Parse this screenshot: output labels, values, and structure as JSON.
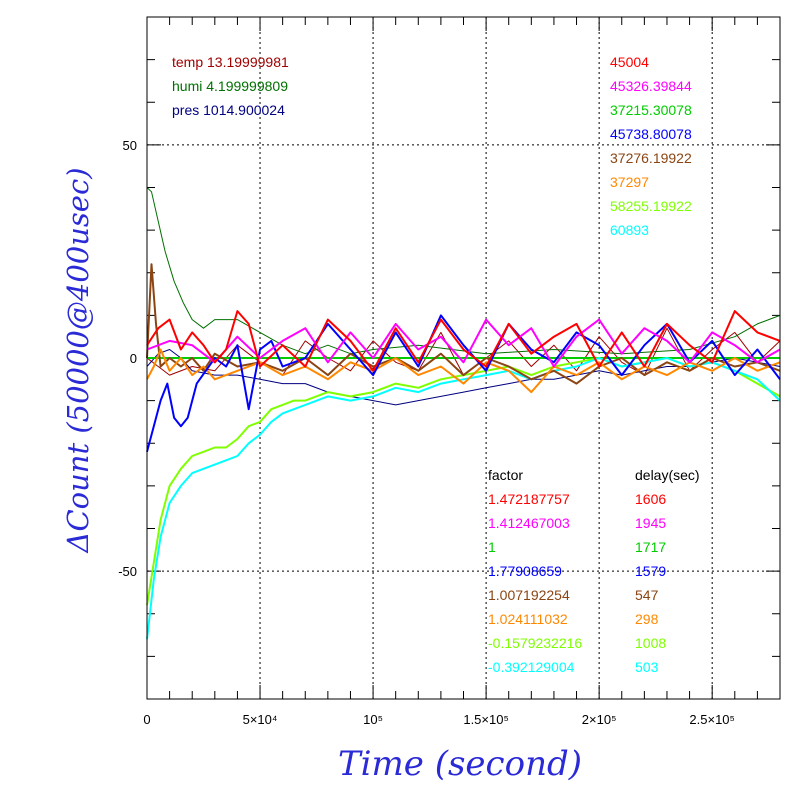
{
  "chart_data": {
    "type": "line",
    "xlabel": "Time (second)",
    "ylabel": "ΔCount (50000@400usec)",
    "xlim": [
      0,
      280000
    ],
    "ylim": [
      -80,
      80
    ],
    "grid": true,
    "x_ticks": [
      {
        "value": 0,
        "label": "0"
      },
      {
        "value": 50000,
        "label": "5×10⁴"
      },
      {
        "value": 100000,
        "label": "10⁵"
      },
      {
        "value": 150000,
        "label": "1.5×10⁵"
      },
      {
        "value": 200000,
        "label": "2×10⁵"
      },
      {
        "value": 250000,
        "label": "2.5×10⁵"
      }
    ],
    "y_ticks": [
      {
        "value": 50,
        "label": "50"
      },
      {
        "value": 0,
        "label": "0"
      },
      {
        "value": -50,
        "label": "-50"
      }
    ],
    "environment": [
      {
        "label": "temp 13.19999981",
        "color": "#a00000"
      },
      {
        "label": "humi 4.199999809",
        "color": "#007000"
      },
      {
        "label": "pres 1014.900024",
        "color": "#000080"
      }
    ],
    "factor_header": "factor",
    "delay_header": "delay(sec)",
    "series": [
      {
        "base": "45004",
        "factor": "1.472187757",
        "delay": "1606",
        "color": "#ff0000",
        "x": [
          0,
          5000,
          10000,
          15000,
          20000,
          25000,
          30000,
          35000,
          40000,
          45000,
          50000,
          60000,
          70000,
          80000,
          90000,
          100000,
          110000,
          120000,
          130000,
          140000,
          150000,
          160000,
          170000,
          180000,
          190000,
          200000,
          210000,
          220000,
          230000,
          240000,
          250000,
          260000,
          270000,
          280000
        ],
        "y": [
          3,
          7,
          9,
          2,
          6,
          3,
          -1,
          2,
          11,
          8,
          -2,
          3,
          -2,
          9,
          4,
          -3,
          7,
          -1,
          9,
          2,
          -2,
          8,
          1,
          5,
          8,
          -2,
          6,
          -2,
          8,
          3,
          -1,
          11,
          6,
          4
        ]
      },
      {
        "base": "45326.39844",
        "factor": "1.412467003",
        "delay": "1945",
        "color": "#ff00ff",
        "x": [
          0,
          10000,
          20000,
          30000,
          40000,
          50000,
          60000,
          70000,
          80000,
          90000,
          100000,
          110000,
          120000,
          130000,
          140000,
          150000,
          160000,
          170000,
          180000,
          190000,
          200000,
          210000,
          220000,
          230000,
          240000,
          250000,
          260000,
          270000,
          280000
        ],
        "y": [
          2,
          4,
          3,
          -1,
          5,
          0,
          4,
          7,
          -1,
          6,
          0,
          8,
          2,
          5,
          -1,
          9,
          3,
          7,
          -2,
          5,
          9,
          1,
          7,
          4,
          -1,
          6,
          3,
          -1,
          2
        ]
      },
      {
        "base": "37215.30078",
        "factor": "1",
        "delay": "1717",
        "color": "#00cc00",
        "x": [
          0,
          280000
        ],
        "y": [
          0,
          0
        ]
      },
      {
        "base": "45738.80078",
        "factor": "1.77908659",
        "delay": "1579",
        "color": "#0000ff",
        "x": [
          0,
          3000,
          6000,
          9000,
          12000,
          15000,
          18000,
          22000,
          26000,
          30000,
          35000,
          40000,
          45000,
          50000,
          55000,
          60000,
          70000,
          80000,
          90000,
          100000,
          110000,
          120000,
          130000,
          140000,
          150000,
          160000,
          170000,
          180000,
          190000,
          200000,
          210000,
          220000,
          230000,
          240000,
          250000,
          260000,
          270000,
          280000
        ],
        "y": [
          -22,
          -16,
          -10,
          -6,
          -14,
          -16,
          -14,
          -6,
          -3,
          0,
          -2,
          3,
          -12,
          2,
          4,
          -2,
          0,
          8,
          2,
          -4,
          6,
          -2,
          10,
          3,
          -3,
          8,
          2,
          -1,
          6,
          3,
          -4,
          3,
          8,
          -1,
          4,
          -4,
          2,
          -5
        ]
      },
      {
        "base": "37276.19922",
        "factor": "1.007192254",
        "delay": "547",
        "color": "#8b4513",
        "x": [
          0,
          2000,
          4000,
          6000,
          10000,
          15000,
          20000,
          25000,
          30000,
          40000,
          50000,
          60000,
          70000,
          80000,
          90000,
          100000,
          110000,
          120000,
          130000,
          140000,
          150000,
          160000,
          170000,
          180000,
          190000,
          200000,
          210000,
          220000,
          230000,
          240000,
          250000,
          260000,
          270000,
          280000
        ],
        "y": [
          0,
          22,
          8,
          -2,
          0,
          -2,
          0,
          -3,
          1,
          -2,
          -1,
          -3,
          0,
          -4,
          1,
          -2,
          0,
          -3,
          1,
          -4,
          0,
          -2,
          -5,
          -3,
          -6,
          -2,
          0,
          -4,
          -1,
          -3,
          0,
          -2,
          -1,
          -3
        ]
      },
      {
        "base": "37297",
        "factor": "1.024111032",
        "delay": "298",
        "color": "#ff8800",
        "x": [
          0,
          3000,
          6000,
          10000,
          15000,
          20000,
          25000,
          30000,
          40000,
          50000,
          60000,
          70000,
          80000,
          90000,
          100000,
          110000,
          120000,
          130000,
          140000,
          150000,
          160000,
          170000,
          180000,
          190000,
          200000,
          210000,
          220000,
          230000,
          240000,
          250000,
          260000,
          270000,
          280000
        ],
        "y": [
          -5,
          -2,
          2,
          -3,
          0,
          -4,
          -2,
          -5,
          -3,
          -1,
          -4,
          -2,
          -5,
          -1,
          -3,
          0,
          -4,
          -2,
          -6,
          -1,
          -3,
          -8,
          -2,
          -4,
          -1,
          -5,
          -2,
          -4,
          -1,
          -3,
          0,
          -3,
          -1
        ]
      },
      {
        "base": "58255.19922",
        "factor": "-0.1579232216",
        "delay": "1008",
        "color": "#7fff00",
        "x": [
          0,
          3000,
          6000,
          10000,
          15000,
          20000,
          25000,
          30000,
          35000,
          40000,
          45000,
          50000,
          55000,
          60000,
          65000,
          70000,
          80000,
          90000,
          100000,
          110000,
          120000,
          130000,
          140000,
          150000,
          160000,
          170000,
          180000,
          190000,
          200000,
          210000,
          220000,
          230000,
          240000,
          250000,
          260000,
          270000,
          280000
        ],
        "y": [
          -58,
          -48,
          -38,
          -30,
          -26,
          -23,
          -22,
          -21,
          -21,
          -19,
          -16,
          -15,
          -12,
          -11,
          -10,
          -10,
          -8,
          -9,
          -8,
          -6,
          -7,
          -5,
          -4,
          -3,
          -2,
          -4,
          -2,
          -1,
          0,
          -2,
          -1,
          0,
          -2,
          -1,
          -3,
          -6,
          -9
        ]
      },
      {
        "base": "60893",
        "factor": "-0.392129004",
        "delay": "503",
        "color": "#00ffff",
        "x": [
          0,
          3000,
          6000,
          10000,
          15000,
          20000,
          25000,
          30000,
          35000,
          40000,
          45000,
          50000,
          55000,
          60000,
          65000,
          70000,
          80000,
          90000,
          100000,
          110000,
          120000,
          130000,
          140000,
          150000,
          160000,
          170000,
          180000,
          190000,
          200000,
          210000,
          220000,
          230000,
          240000,
          250000,
          260000,
          270000,
          280000
        ],
        "y": [
          -66,
          -52,
          -42,
          -34,
          -30,
          -27,
          -26,
          -25,
          -24,
          -23,
          -20,
          -18,
          -15,
          -13,
          -12,
          -11,
          -9,
          -10,
          -9,
          -7,
          -8,
          -6,
          -5,
          -4,
          -3,
          -5,
          -3,
          -2,
          0,
          -2,
          -1,
          0,
          -2,
          -1,
          -3,
          -5,
          -10
        ]
      }
    ],
    "extra_series": [
      {
        "role": "temperature",
        "color": "#a00000",
        "x": [
          0,
          10000,
          20000,
          30000,
          40000,
          50000,
          60000,
          70000,
          80000,
          90000,
          100000,
          110000,
          120000,
          130000,
          140000,
          150000,
          160000,
          170000,
          180000,
          190000,
          200000,
          210000,
          220000,
          230000,
          240000,
          250000,
          260000,
          270000,
          280000
        ],
        "y": [
          0,
          -4,
          -2,
          -3,
          3,
          -1,
          -4,
          4,
          0,
          -3,
          4,
          -1,
          -3,
          6,
          -4,
          0,
          4,
          -2,
          3,
          -3,
          5,
          -1,
          -4,
          7,
          -3,
          2,
          6,
          -1,
          4
        ]
      },
      {
        "role": "humidity",
        "color": "#007000",
        "x": [
          0,
          2000,
          5000,
          8000,
          12000,
          16000,
          20000,
          25000,
          30000,
          40000,
          50000,
          60000,
          70000,
          80000,
          90000,
          100000,
          120000,
          150000,
          180000,
          210000,
          240000,
          260000,
          270000,
          280000
        ],
        "y": [
          40,
          39,
          32,
          25,
          18,
          13,
          9,
          7,
          9,
          9,
          6,
          3,
          1,
          3,
          1,
          2,
          3,
          1,
          2,
          1,
          2,
          5,
          8,
          10
        ]
      },
      {
        "role": "pressure",
        "color": "#000080",
        "x": [
          0,
          5000,
          10000,
          15000,
          20000,
          30000,
          40000,
          50000,
          60000,
          70000,
          80000,
          90000,
          100000,
          110000,
          120000,
          130000,
          140000,
          150000,
          160000,
          170000,
          180000,
          190000,
          200000,
          210000,
          220000,
          230000,
          240000,
          250000,
          260000,
          270000,
          280000
        ],
        "y": [
          -2,
          1,
          2,
          0,
          -3,
          -4,
          -4,
          -5,
          -6,
          -6,
          -8,
          -9,
          -10,
          -11,
          -10,
          -9,
          -8,
          -7,
          -6,
          -5,
          -5,
          -4,
          -3,
          -4,
          -3,
          -2,
          -2,
          -1,
          0,
          -1,
          -2
        ]
      }
    ]
  }
}
